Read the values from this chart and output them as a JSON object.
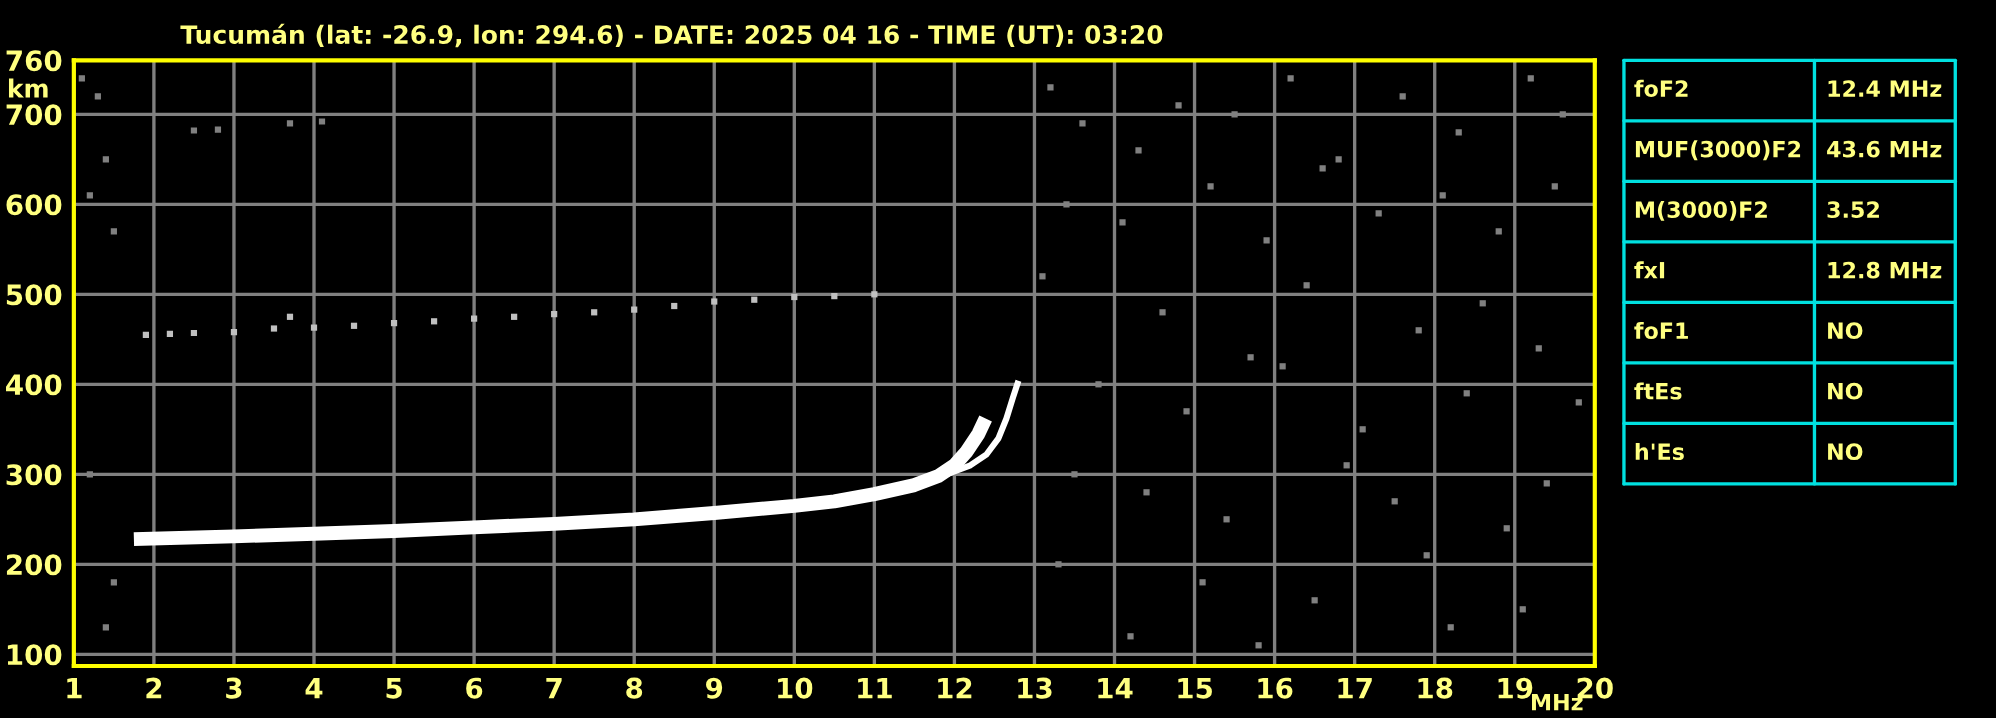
{
  "chart_data": [
    {
      "type": "line",
      "title": "Tucumán (lat: -26.9, lon: 294.6) - DATE: 2025 04 16 - TIME (UT): 03:20",
      "xlabel": "MHz",
      "ylabel": "km",
      "xlim": [
        1,
        20
      ],
      "xticks": [
        1,
        2,
        3,
        4,
        5,
        6,
        7,
        8,
        9,
        10,
        11,
        12,
        13,
        14,
        15,
        16,
        17,
        18,
        19,
        20
      ],
      "ylim": [
        87,
        760
      ],
      "yticks": [
        100,
        200,
        300,
        400,
        500,
        600,
        700,
        760
      ],
      "grid": true,
      "line_style": "solid",
      "series": [
        {
          "type": "line",
          "color": "#ffffff",
          "x": [
            1.75,
            3,
            4,
            5,
            6,
            7,
            8,
            9,
            10,
            10.5,
            11,
            11.5,
            11.8,
            12,
            12.15,
            12.3,
            12.39
          ],
          "values": [
            228,
            231,
            234,
            237,
            241,
            245,
            250,
            257,
            265,
            270,
            278,
            288,
            298,
            310,
            325,
            345,
            362
          ]
        },
        {
          "type": "line",
          "color": "#ffffff",
          "x": [
            11.9,
            12.2,
            12.4,
            12.55,
            12.65,
            12.73,
            12.8
          ],
          "values": [
            300,
            310,
            322,
            340,
            362,
            385,
            404
          ]
        },
        {
          "type": "scatter",
          "marker": "square",
          "color": "#c0c0c0",
          "x": [
            1.9,
            2.2,
            2.5,
            3,
            3.5,
            3.7,
            4,
            4.5,
            5,
            5.5,
            6,
            6.5,
            7,
            7.5,
            8,
            8.5,
            9,
            9.5,
            10,
            10.5,
            11
          ],
          "values": [
            455,
            456,
            457,
            458,
            462,
            475,
            463,
            465,
            468,
            470,
            473,
            475,
            478,
            480,
            483,
            487,
            492,
            494,
            497,
            498,
            500
          ]
        },
        {
          "type": "scatter",
          "marker": "square",
          "color": "#808080",
          "x": [
            1.1,
            1.3,
            1.4,
            1.2,
            1.5,
            2.5,
            2.8,
            3.7,
            4.1,
            1.2,
            1.5,
            1.4,
            13.2,
            13.6,
            14.3,
            14.8,
            15.5,
            16.2,
            16.8,
            17.6,
            18.3,
            19.2,
            19.6,
            13.4,
            14.1,
            15.2,
            15.9,
            16.6,
            17.3,
            18.1,
            18.8,
            19.5,
            13.1,
            14.6,
            15.7,
            16.4,
            17.8,
            18.6,
            19.3,
            13.8,
            14.9,
            16.1,
            17.1,
            18.4,
            19.8,
            13.5,
            14.4,
            15.4,
            16.9,
            17.5,
            18.9,
            19.4,
            13.3,
            15.1,
            16.5,
            17.9,
            19.1,
            14.2,
            15.8,
            18.2
          ],
          "values": [
            740,
            720,
            650,
            610,
            570,
            682,
            683,
            690,
            692,
            300,
            180,
            130,
            730,
            690,
            660,
            710,
            700,
            740,
            650,
            720,
            680,
            740,
            700,
            600,
            580,
            620,
            560,
            640,
            590,
            610,
            570,
            620,
            520,
            480,
            430,
            510,
            460,
            490,
            440,
            400,
            370,
            420,
            350,
            390,
            380,
            300,
            280,
            250,
            310,
            270,
            240,
            290,
            200,
            180,
            160,
            210,
            150,
            120,
            110,
            130
          ]
        }
      ]
    },
    {
      "type": "other",
      "annotations": [
        "foF2",
        "12.4 MHz",
        "MUF(3000)F2",
        "43.6 MHz",
        "M(3000)F2",
        "3.52",
        "fxI",
        "12.8 MHz",
        "foF1",
        "NO",
        "ftEs",
        "NO",
        "h'Es",
        "NO"
      ]
    }
  ]
}
